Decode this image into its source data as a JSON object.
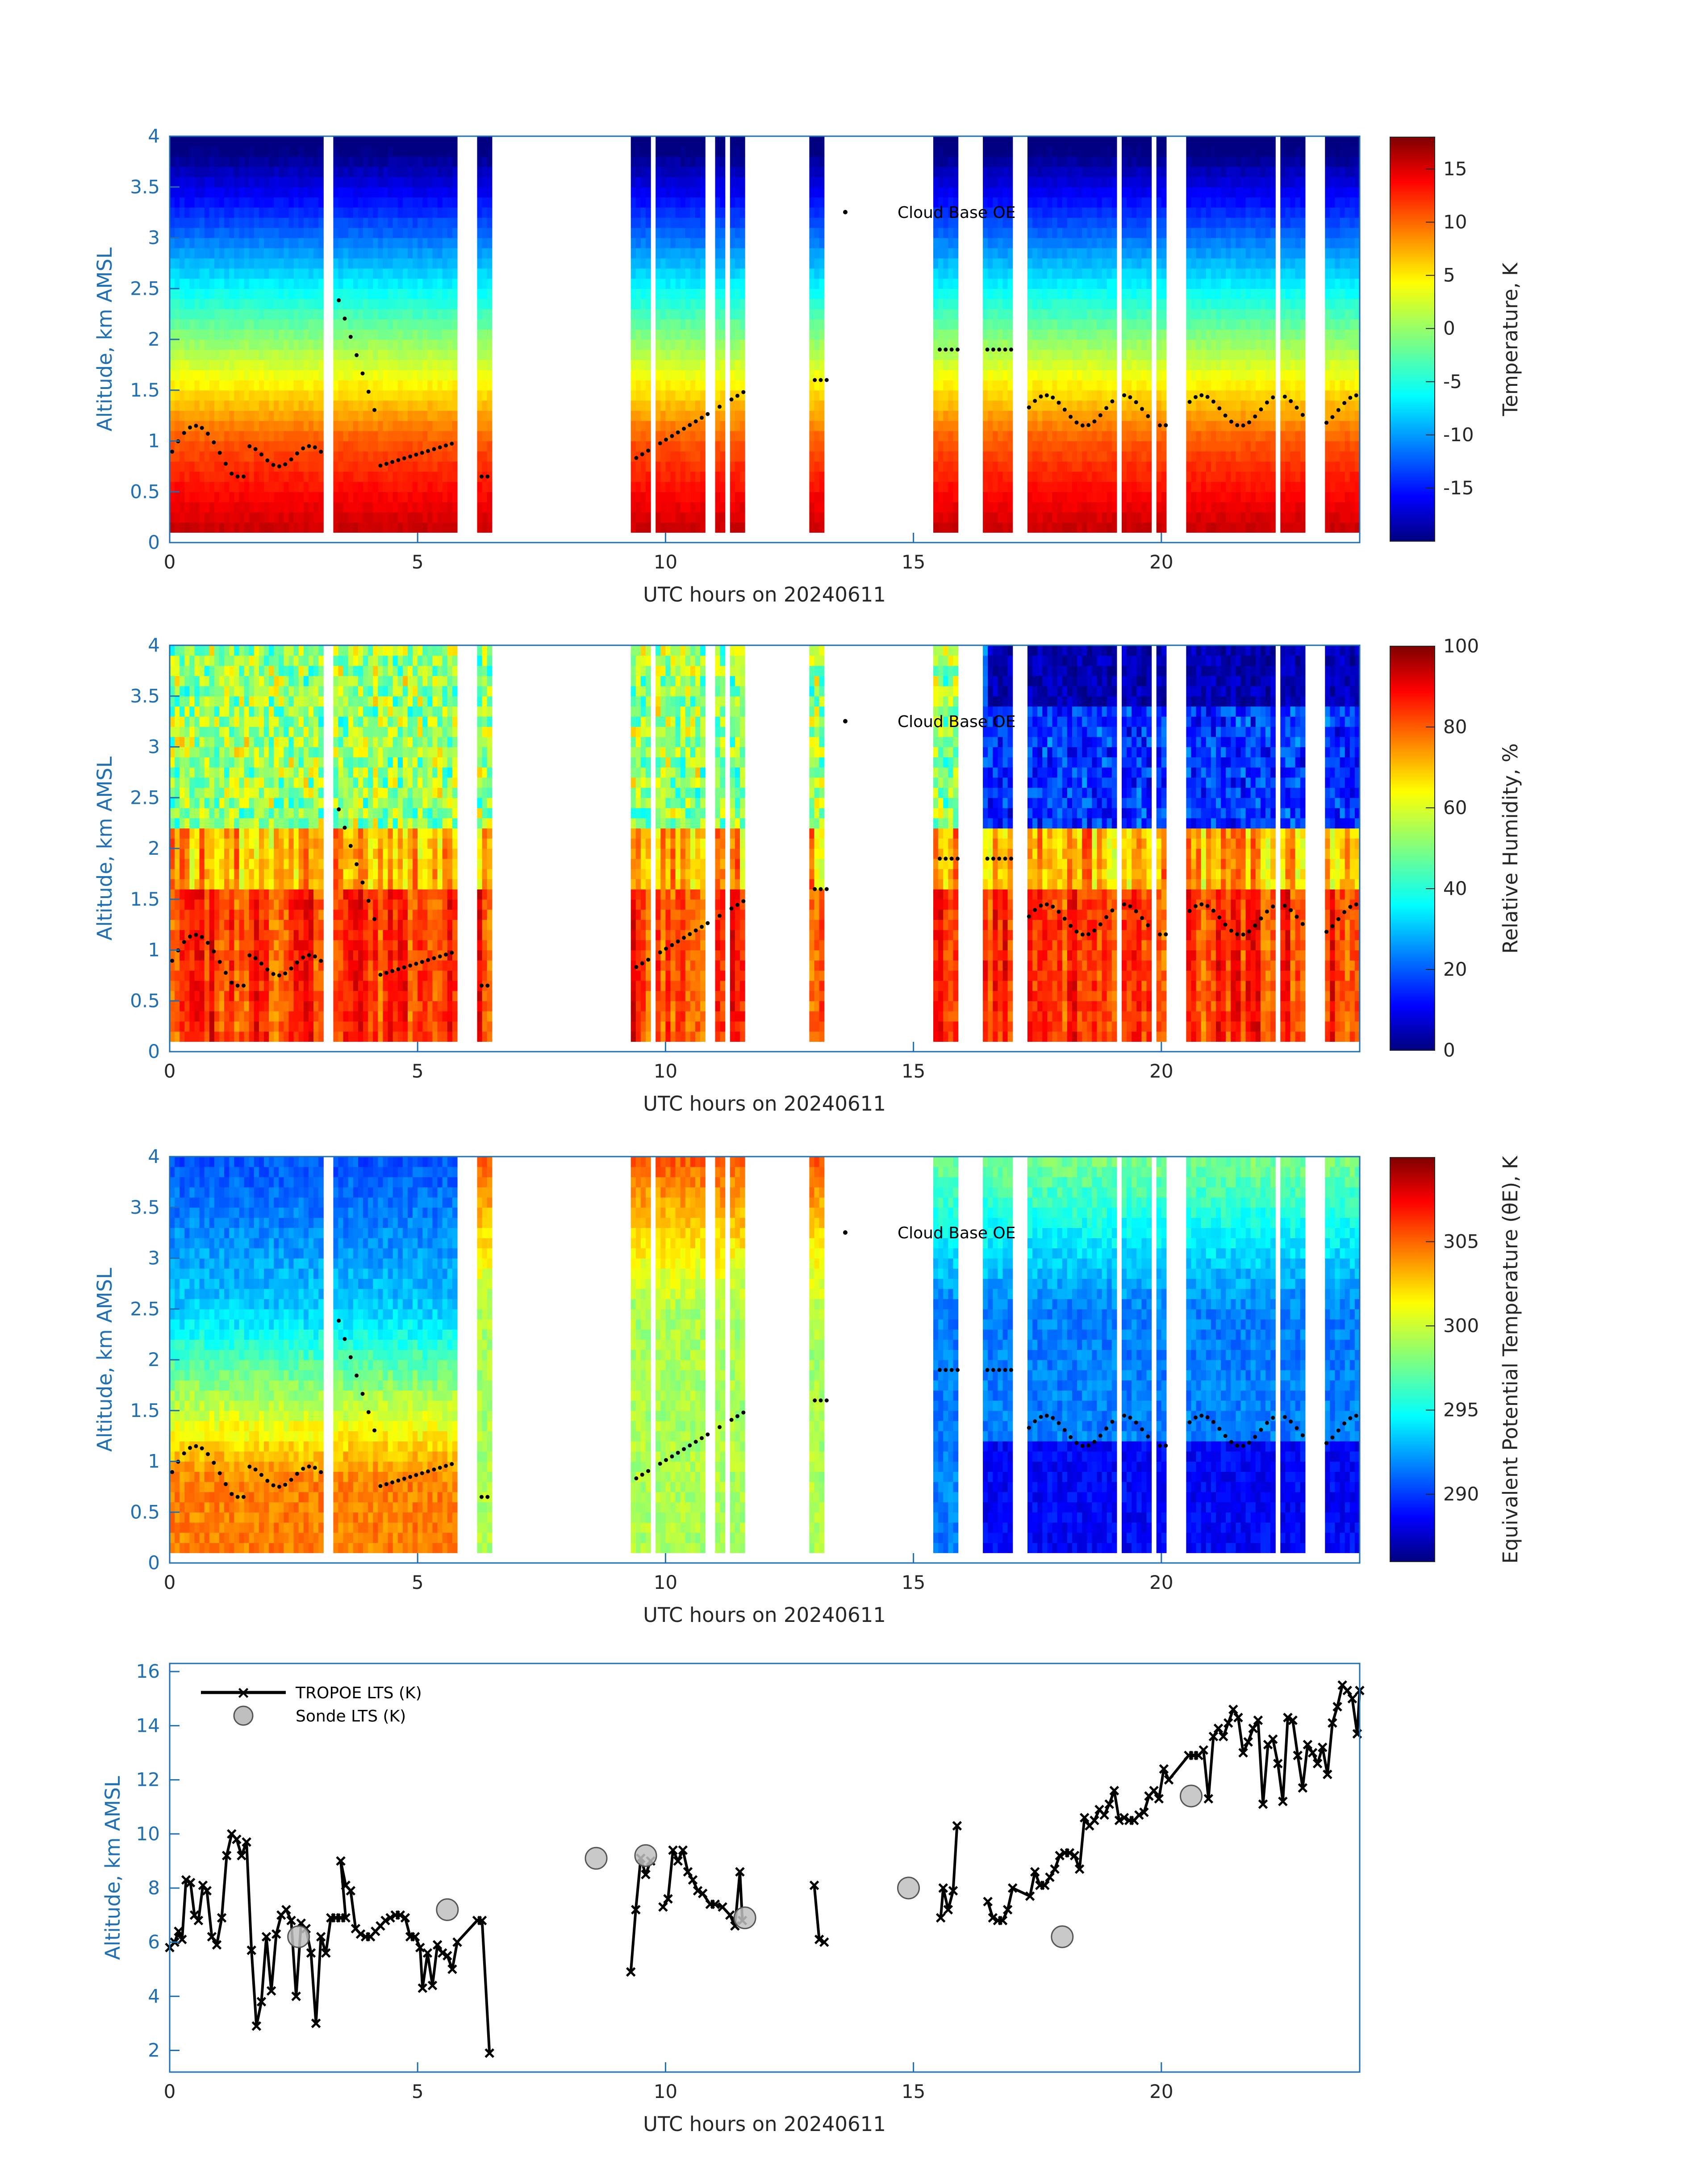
{
  "figure": {
    "x_label": "UTC hours on 20240611",
    "x_ticks": [
      0,
      5,
      10,
      15,
      20
    ],
    "axis_color": "#1f6fb2",
    "data_gaps_hours": [
      [
        3.15,
        3.3
      ],
      [
        5.8,
        6.2
      ],
      [
        6.5,
        9.3
      ],
      [
        9.72,
        9.85
      ],
      [
        10.85,
        11.0
      ],
      [
        11.2,
        11.3
      ],
      [
        11.6,
        12.95
      ],
      [
        13.25,
        15.45
      ],
      [
        15.9,
        16.45
      ],
      [
        17.0,
        17.3
      ],
      [
        19.1,
        19.2
      ],
      [
        19.8,
        19.95
      ],
      [
        20.1,
        20.55
      ],
      [
        22.35,
        22.45
      ],
      [
        22.95,
        23.3
      ]
    ]
  },
  "chart_data": [
    {
      "type": "heatmap",
      "name": "temperature",
      "ylabel": "Altitude, km AMSL",
      "xlabel": "UTC hours on 20240611",
      "xlim": [
        0,
        24
      ],
      "ylim": [
        0,
        4
      ],
      "y_ticks": [
        "0",
        "0.5",
        "1",
        "1.5",
        "2",
        "2.5",
        "3",
        "3.5",
        "4"
      ],
      "colorbar": {
        "label": "Temperature, K",
        "range": [
          -20,
          18
        ],
        "ticks": [
          "-15",
          "-10",
          "-5",
          "0",
          "5",
          "10",
          "15"
        ]
      },
      "profile": {
        "surface_value": 16,
        "top_value": -17,
        "inversion_km": 1.0
      },
      "legend": "Cloud Base OE"
    },
    {
      "type": "heatmap",
      "name": "relative_humidity",
      "ylabel": "Altitude, km AMSL",
      "xlabel": "UTC hours on 20240611",
      "xlim": [
        0,
        24
      ],
      "ylim": [
        0,
        4
      ],
      "y_ticks": [
        "0",
        "0.5",
        "1",
        "1.5",
        "2",
        "2.5",
        "3",
        "3.5",
        "4"
      ],
      "colorbar": {
        "label": "Relative Humidity, %",
        "range": [
          0,
          100
        ],
        "ticks": [
          "0",
          "20",
          "40",
          "60",
          "80",
          "100"
        ]
      },
      "legend": "Cloud Base OE"
    },
    {
      "type": "heatmap",
      "name": "equivalent_potential_temperature",
      "ylabel": "Altitude, km AMSL",
      "xlabel": "UTC hours on 20240611",
      "xlim": [
        0,
        24
      ],
      "ylim": [
        0,
        4
      ],
      "y_ticks": [
        "0",
        "0.5",
        "1",
        "1.5",
        "2",
        "2.5",
        "3",
        "3.5",
        "4"
      ],
      "colorbar": {
        "label": "Equivalent Potential Temperature (θE), K",
        "range": [
          286,
          310
        ],
        "ticks": [
          "290",
          "295",
          "300",
          "305"
        ]
      },
      "legend": "Cloud Base OE"
    },
    {
      "type": "line",
      "name": "lts",
      "ylabel": "Altitude, km AMSL",
      "xlabel": "UTC hours on 20240611",
      "xlim": [
        0,
        24
      ],
      "ylim": [
        1.2,
        16.3
      ],
      "y_ticks": [
        "2",
        "4",
        "6",
        "8",
        "10",
        "12",
        "14",
        "16"
      ],
      "series": [
        {
          "name": "TROPOE LTS (K)",
          "segments": [
            [
              [
                0.0,
                5.8
              ],
              [
                0.1,
                6.0
              ],
              [
                0.18,
                6.4
              ],
              [
                0.25,
                6.1
              ],
              [
                0.33,
                8.3
              ],
              [
                0.42,
                8.2
              ],
              [
                0.5,
                7.0
              ],
              [
                0.58,
                6.8
              ],
              [
                0.67,
                8.1
              ],
              [
                0.75,
                7.9
              ],
              [
                0.85,
                6.2
              ],
              [
                0.95,
                5.9
              ],
              [
                1.05,
                6.9
              ],
              [
                1.15,
                9.2
              ],
              [
                1.25,
                10.0
              ],
              [
                1.35,
                9.8
              ],
              [
                1.45,
                9.2
              ],
              [
                1.55,
                9.7
              ],
              [
                1.65,
                5.7
              ],
              [
                1.75,
                2.9
              ],
              [
                1.85,
                3.8
              ],
              [
                1.95,
                6.2
              ],
              [
                2.05,
                4.2
              ],
              [
                2.15,
                6.3
              ],
              [
                2.25,
                7.0
              ],
              [
                2.35,
                7.2
              ],
              [
                2.45,
                6.8
              ],
              [
                2.55,
                4.0
              ],
              [
                2.65,
                6.7
              ],
              [
                2.75,
                6.5
              ],
              [
                2.85,
                5.6
              ],
              [
                2.95,
                3.0
              ],
              [
                3.05,
                6.2
              ],
              [
                3.15,
                5.6
              ],
              [
                3.25,
                6.9
              ],
              [
                3.35,
                6.9
              ],
              [
                3.45,
                6.9
              ],
              [
                3.55,
                6.9
              ],
              [
                3.45,
                9.0
              ],
              [
                3.55,
                8.1
              ],
              [
                3.65,
                7.9
              ],
              [
                3.75,
                6.5
              ],
              [
                3.85,
                6.3
              ],
              [
                3.95,
                6.2
              ],
              [
                4.05,
                6.2
              ],
              [
                4.15,
                6.4
              ],
              [
                4.25,
                6.6
              ],
              [
                4.35,
                6.8
              ],
              [
                4.45,
                6.9
              ],
              [
                4.55,
                7.0
              ],
              [
                4.65,
                7.0
              ],
              [
                4.75,
                6.9
              ],
              [
                4.85,
                6.2
              ],
              [
                4.95,
                6.2
              ],
              [
                5.05,
                5.8
              ],
              [
                5.1,
                4.3
              ],
              [
                5.2,
                5.6
              ],
              [
                5.3,
                4.4
              ],
              [
                5.4,
                5.9
              ],
              [
                5.5,
                5.6
              ],
              [
                5.6,
                5.5
              ],
              [
                5.7,
                5.0
              ],
              [
                5.8,
                6.0
              ],
              [
                6.2,
                6.8
              ],
              [
                6.3,
                6.8
              ],
              [
                6.45,
                1.9
              ]
            ],
            [
              [
                9.3,
                4.9
              ],
              [
                9.4,
                7.2
              ],
              [
                9.5,
                9.1
              ],
              [
                9.6,
                8.5
              ],
              [
                9.7,
                9.0
              ]
            ],
            [
              [
                9.95,
                7.3
              ],
              [
                10.05,
                7.6
              ],
              [
                10.15,
                9.4
              ],
              [
                10.25,
                9.0
              ],
              [
                10.35,
                9.4
              ],
              [
                10.45,
                8.6
              ],
              [
                10.55,
                8.3
              ],
              [
                10.65,
                7.9
              ],
              [
                10.75,
                7.8
              ],
              [
                10.9,
                7.4
              ],
              [
                11.0,
                7.4
              ],
              [
                11.15,
                7.3
              ],
              [
                11.3,
                7.0
              ],
              [
                11.4,
                6.6
              ],
              [
                11.5,
                8.6
              ],
              [
                11.55,
                6.8
              ]
            ],
            [
              [
                13.0,
                8.1
              ],
              [
                13.1,
                6.1
              ],
              [
                13.2,
                6.0
              ]
            ],
            [
              [
                15.55,
                6.9
              ],
              [
                15.6,
                8.0
              ],
              [
                15.7,
                7.2
              ],
              [
                15.8,
                7.9
              ],
              [
                15.88,
                10.3
              ]
            ],
            [
              [
                16.5,
                7.5
              ],
              [
                16.6,
                6.9
              ],
              [
                16.7,
                6.8
              ],
              [
                16.8,
                6.8
              ],
              [
                16.9,
                7.2
              ],
              [
                17.0,
                8.0
              ],
              [
                17.35,
                7.7
              ],
              [
                17.45,
                8.6
              ],
              [
                17.55,
                8.1
              ],
              [
                17.65,
                8.1
              ],
              [
                17.75,
                8.4
              ],
              [
                17.85,
                8.7
              ],
              [
                17.95,
                9.2
              ],
              [
                18.05,
                9.3
              ],
              [
                18.15,
                9.3
              ],
              [
                18.25,
                9.2
              ],
              [
                18.35,
                8.7
              ],
              [
                18.45,
                10.6
              ],
              [
                18.55,
                10.3
              ],
              [
                18.65,
                10.5
              ],
              [
                18.75,
                10.9
              ],
              [
                18.85,
                10.7
              ],
              [
                18.95,
                11.1
              ],
              [
                19.05,
                11.6
              ],
              [
                19.15,
                10.5
              ],
              [
                19.25,
                10.6
              ],
              [
                19.35,
                10.5
              ],
              [
                19.45,
                10.5
              ],
              [
                19.55,
                10.7
              ],
              [
                19.65,
                10.8
              ],
              [
                19.75,
                11.4
              ],
              [
                19.85,
                11.6
              ],
              [
                19.95,
                11.3
              ],
              [
                20.05,
                12.4
              ],
              [
                20.15,
                12.0
              ],
              [
                20.55,
                12.9
              ],
              [
                20.65,
                12.9
              ],
              [
                20.75,
                12.9
              ],
              [
                20.85,
                13.1
              ],
              [
                20.95,
                11.3
              ],
              [
                21.05,
                13.6
              ],
              [
                21.15,
                13.9
              ],
              [
                21.25,
                13.6
              ],
              [
                21.35,
                14.1
              ],
              [
                21.45,
                14.6
              ],
              [
                21.55,
                14.3
              ],
              [
                21.65,
                13.0
              ],
              [
                21.75,
                13.4
              ],
              [
                21.85,
                13.9
              ],
              [
                21.95,
                14.2
              ],
              [
                22.05,
                11.1
              ],
              [
                22.15,
                13.3
              ],
              [
                22.25,
                13.5
              ],
              [
                22.35,
                12.6
              ],
              [
                22.45,
                11.2
              ],
              [
                22.55,
                14.3
              ],
              [
                22.65,
                14.2
              ],
              [
                22.75,
                12.9
              ],
              [
                22.85,
                11.7
              ],
              [
                22.95,
                13.3
              ],
              [
                23.05,
                13.0
              ],
              [
                23.15,
                12.6
              ],
              [
                23.25,
                13.2
              ],
              [
                23.35,
                12.2
              ],
              [
                23.45,
                14.1
              ],
              [
                23.55,
                14.7
              ],
              [
                23.65,
                15.5
              ],
              [
                23.75,
                15.3
              ],
              [
                23.85,
                15.0
              ],
              [
                23.95,
                13.7
              ],
              [
                24.0,
                15.3
              ]
            ]
          ]
        },
        {
          "name": "Sonde LTS (K)",
          "points": [
            [
              2.6,
              6.2
            ],
            [
              5.6,
              7.2
            ],
            [
              8.6,
              9.1
            ],
            [
              9.6,
              9.2
            ],
            [
              11.6,
              6.9
            ],
            [
              14.9,
              8.0
            ],
            [
              18.0,
              6.2
            ],
            [
              20.6,
              11.4
            ]
          ]
        }
      ]
    }
  ]
}
